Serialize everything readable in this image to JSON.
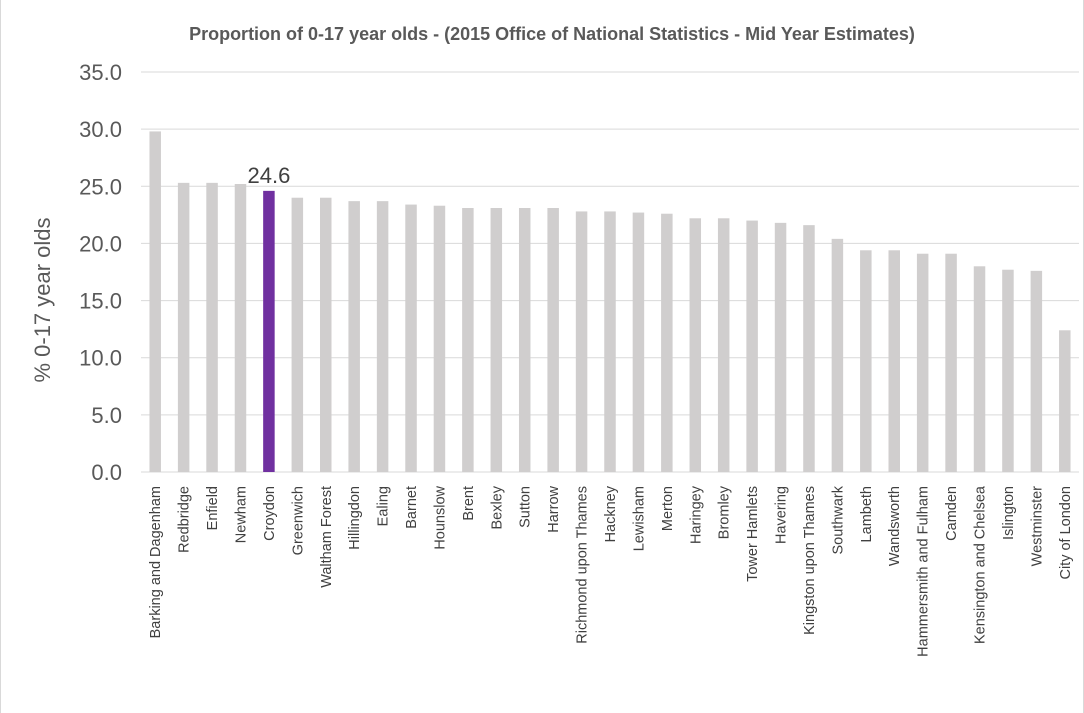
{
  "chart_data": {
    "type": "bar",
    "title": "Proportion of 0-17 year olds - (2015 Office of National Statistics - Mid Year Estimates)",
    "ylabel": "% 0-17 year olds",
    "xlabel": "",
    "ylim": [
      0,
      35
    ],
    "yticks": [
      "0.0",
      "5.0",
      "10.0",
      "15.0",
      "20.0",
      "25.0",
      "30.0",
      "35.0"
    ],
    "grid": true,
    "legend": "none",
    "colors": {
      "default": "#d0cece",
      "highlight": "#7030a0"
    },
    "highlight": "Croydon",
    "categories": [
      "Barking and Dagenham",
      "Redbridge",
      "Enfield",
      "Newham",
      "Croydon",
      "Greenwich",
      "Waltham Forest",
      "Hillingdon",
      "Ealing",
      "Barnet",
      "Hounslow",
      "Brent",
      "Bexley",
      "Sutton",
      "Harrow",
      "Richmond upon Thames",
      "Hackney",
      "Lewisham",
      "Merton",
      "Haringey",
      "Bromley",
      "Tower Hamlets",
      "Havering",
      "Kingston upon Thames",
      "Southwark",
      "Lambeth",
      "Wandsworth",
      "Hammersmith and Fulham",
      "Camden",
      "Kensington and Chelsea",
      "Islington",
      "Westminster",
      "City of London"
    ],
    "values": [
      29.8,
      25.3,
      25.3,
      25.2,
      24.6,
      24.0,
      24.0,
      23.7,
      23.7,
      23.4,
      23.3,
      23.1,
      23.1,
      23.1,
      23.1,
      22.8,
      22.8,
      22.7,
      22.6,
      22.2,
      22.2,
      22.0,
      21.8,
      21.6,
      20.4,
      19.4,
      19.4,
      19.1,
      19.1,
      18.0,
      17.7,
      17.6,
      12.4
    ],
    "data_labels": [
      {
        "category": "Croydon",
        "text": "24.6"
      }
    ]
  }
}
